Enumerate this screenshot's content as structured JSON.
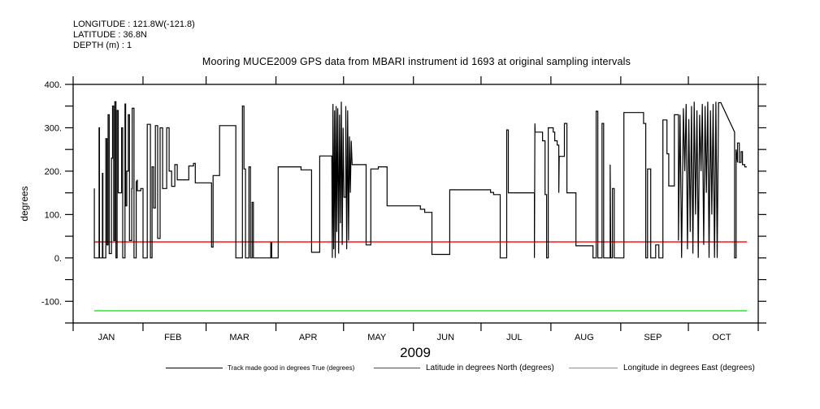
{
  "header": {
    "longitude": "LONGITUDE : 121.8W(-121.8)",
    "latitude": "LATITUDE : 36.8N",
    "depth": "DEPTH (m) : 1"
  },
  "chart_data": {
    "type": "line",
    "title": "Mooring MUCE2009 GPS data from MBARI instrument id 1693 at original sampling intervals",
    "xlabel": "2009",
    "ylabel": "degrees",
    "xlim_days": [
      0,
      304
    ],
    "ylim": [
      -150,
      400
    ],
    "y_ticks": [
      -100,
      0,
      100,
      200,
      300,
      400
    ],
    "y_tick_labels": [
      "-100.",
      "0.",
      "100.",
      "200.",
      "300.",
      "400."
    ],
    "y_minor_step": 50,
    "x_month_boundaries": [
      0,
      31,
      59,
      90,
      120,
      151,
      181,
      212,
      243,
      273,
      304
    ],
    "x_tick_labels": [
      "JAN",
      "FEB",
      "MAR",
      "APR",
      "MAY",
      "JUN",
      "JUL",
      "AUG",
      "SEP",
      "OCT"
    ],
    "grid": false,
    "legend_position": "bottom",
    "series": [
      {
        "name": "Track made good in degrees True (degrees)",
        "color": "#000000",
        "points": [
          [
            9.4,
            160
          ],
          [
            9.4,
            0
          ],
          [
            11.5,
            0
          ],
          [
            11.5,
            300
          ],
          [
            11.7,
            300
          ],
          [
            11.7,
            0
          ],
          [
            13,
            0
          ],
          [
            13,
            195
          ],
          [
            13.2,
            195
          ],
          [
            13.2,
            0
          ],
          [
            14.5,
            0
          ],
          [
            14.5,
            275
          ],
          [
            15,
            275
          ],
          [
            15,
            30
          ],
          [
            15.5,
            30
          ],
          [
            15.5,
            330
          ],
          [
            16,
            330
          ],
          [
            16,
            10
          ],
          [
            17,
            10
          ],
          [
            17,
            230
          ],
          [
            17.5,
            230
          ],
          [
            17.5,
            350
          ],
          [
            18,
            350
          ],
          [
            18,
            40
          ],
          [
            18.5,
            40
          ],
          [
            18.5,
            360
          ],
          [
            19,
            360
          ],
          [
            19,
            0
          ],
          [
            19.5,
            0
          ],
          [
            19.5,
            340
          ],
          [
            20,
            340
          ],
          [
            20,
            150
          ],
          [
            21.5,
            150
          ],
          [
            21.5,
            300
          ],
          [
            22,
            300
          ],
          [
            22,
            0
          ],
          [
            23,
            0
          ],
          [
            23,
            355
          ],
          [
            23.3,
            355
          ],
          [
            23.3,
            120
          ],
          [
            23.8,
            120
          ],
          [
            23.8,
            200
          ],
          [
            24.5,
            200
          ],
          [
            24.5,
            330
          ],
          [
            25,
            330
          ],
          [
            25,
            40
          ],
          [
            26,
            40
          ],
          [
            26,
            160
          ],
          [
            26.2,
            160
          ],
          [
            26.2,
            345
          ],
          [
            27,
            345
          ],
          [
            27,
            0
          ],
          [
            28,
            0
          ],
          [
            28,
            175
          ],
          [
            28.5,
            180
          ],
          [
            28.5,
            155
          ],
          [
            30,
            155
          ],
          [
            30,
            160
          ],
          [
            31,
            160
          ],
          [
            31,
            0
          ],
          [
            32.9,
            0
          ],
          [
            32.9,
            308
          ],
          [
            34.3,
            308
          ],
          [
            34.3,
            0
          ],
          [
            35,
            0
          ],
          [
            35,
            210
          ],
          [
            35.7,
            210
          ],
          [
            35.7,
            115
          ],
          [
            36.5,
            115
          ],
          [
            36.5,
            305
          ],
          [
            37.5,
            305
          ],
          [
            37.5,
            45
          ],
          [
            38.6,
            45
          ],
          [
            38.6,
            300
          ],
          [
            39.7,
            300
          ],
          [
            39.7,
            160
          ],
          [
            41.5,
            160
          ],
          [
            41.5,
            300
          ],
          [
            42.6,
            300
          ],
          [
            42.6,
            200
          ],
          [
            43.7,
            200
          ],
          [
            43.7,
            165
          ],
          [
            45.1,
            165
          ],
          [
            45.1,
            215
          ],
          [
            46.2,
            215
          ],
          [
            46.2,
            180
          ],
          [
            51.3,
            180
          ],
          [
            51.3,
            212
          ],
          [
            53.4,
            212
          ],
          [
            53.4,
            218
          ],
          [
            54.2,
            218
          ],
          [
            54.2,
            173
          ],
          [
            61.4,
            173
          ],
          [
            61.4,
            25
          ],
          [
            62.1,
            25
          ],
          [
            62.1,
            190
          ],
          [
            65,
            190
          ],
          [
            65,
            305
          ],
          [
            72.2,
            305
          ],
          [
            72.2,
            0
          ],
          [
            75.1,
            0
          ],
          [
            75.1,
            350
          ],
          [
            75.8,
            350
          ],
          [
            75.8,
            205
          ],
          [
            76.5,
            205
          ],
          [
            76.5,
            0
          ],
          [
            78,
            0
          ],
          [
            78,
            210
          ],
          [
            78.7,
            210
          ],
          [
            78.7,
            0
          ],
          [
            79.4,
            0
          ],
          [
            79.4,
            128
          ],
          [
            80,
            128
          ],
          [
            80,
            0
          ],
          [
            87.7,
            0
          ],
          [
            87.7,
            35
          ],
          [
            88.1,
            35
          ],
          [
            88.1,
            0
          ],
          [
            91,
            0
          ],
          [
            91,
            210
          ],
          [
            101.1,
            210
          ],
          [
            101.1,
            203
          ],
          [
            105.8,
            203
          ],
          [
            105.8,
            13
          ],
          [
            109.4,
            13
          ],
          [
            109.4,
            235
          ],
          [
            114.8,
            235
          ],
          [
            115,
            0
          ],
          [
            115.3,
            355
          ],
          [
            115.6,
            20
          ],
          [
            116,
            340
          ],
          [
            116.3,
            0
          ],
          [
            116.7,
            350
          ],
          [
            117,
            60
          ],
          [
            117.4,
            345
          ],
          [
            117.8,
            10
          ],
          [
            118.2,
            330
          ],
          [
            118.6,
            80
          ],
          [
            119,
            360
          ],
          [
            119.4,
            30
          ],
          [
            119.8,
            300
          ],
          [
            120.2,
            140
          ],
          [
            121,
            140
          ],
          [
            121,
            350
          ],
          [
            121.4,
            20
          ],
          [
            121.8,
            340
          ],
          [
            122.2,
            40
          ],
          [
            122.6,
            280
          ],
          [
            123,
            150
          ],
          [
            123.4,
            270
          ],
          [
            123.8,
            215
          ],
          [
            130,
            215
          ],
          [
            130,
            30
          ],
          [
            132.1,
            30
          ],
          [
            132.1,
            205
          ],
          [
            135.4,
            205
          ],
          [
            135.4,
            210
          ],
          [
            139.3,
            210
          ],
          [
            139.3,
            120
          ],
          [
            154.1,
            120
          ],
          [
            154.1,
            112
          ],
          [
            156,
            112
          ],
          [
            156,
            105
          ],
          [
            159.2,
            105
          ],
          [
            159.2,
            8
          ],
          [
            167.1,
            8
          ],
          [
            167.1,
            157
          ],
          [
            185.2,
            157
          ],
          [
            185.2,
            151
          ],
          [
            186.6,
            151
          ],
          [
            186.6,
            146
          ],
          [
            189.5,
            146
          ],
          [
            189.5,
            0
          ],
          [
            192.4,
            0
          ],
          [
            192.4,
            295
          ],
          [
            193.1,
            295
          ],
          [
            193.1,
            150
          ],
          [
            204.7,
            150
          ],
          [
            204.7,
            0
          ],
          [
            204.9,
            310
          ],
          [
            205,
            290
          ],
          [
            208.3,
            290
          ],
          [
            208.3,
            270
          ],
          [
            209.4,
            270
          ],
          [
            209.4,
            146
          ],
          [
            210.1,
            146
          ],
          [
            210.1,
            0
          ],
          [
            210.8,
            0
          ],
          [
            210.8,
            300
          ],
          [
            213,
            300
          ],
          [
            213,
            290
          ],
          [
            213.7,
            290
          ],
          [
            213.7,
            270
          ],
          [
            214.8,
            270
          ],
          [
            214.8,
            260
          ],
          [
            215.5,
            260
          ],
          [
            215.5,
            150
          ],
          [
            215.7,
            234
          ],
          [
            218,
            234
          ],
          [
            218,
            310
          ],
          [
            219.1,
            310
          ],
          [
            219.1,
            150
          ],
          [
            223.1,
            150
          ],
          [
            223.1,
            28
          ],
          [
            230.7,
            28
          ],
          [
            230.7,
            0
          ],
          [
            232.1,
            0
          ],
          [
            232.1,
            338
          ],
          [
            232.8,
            338
          ],
          [
            232.8,
            0
          ],
          [
            234.7,
            0
          ],
          [
            234.7,
            310
          ],
          [
            235.4,
            310
          ],
          [
            235.4,
            0
          ],
          [
            238.3,
            0
          ],
          [
            238.3,
            215
          ],
          [
            238.6,
            0
          ],
          [
            239.3,
            0
          ],
          [
            239.3,
            160
          ],
          [
            240.1,
            160
          ],
          [
            240.1,
            0
          ],
          [
            244.4,
            0
          ],
          [
            244.4,
            335
          ],
          [
            253.1,
            335
          ],
          [
            253.1,
            310
          ],
          [
            254.1,
            310
          ],
          [
            254.1,
            0
          ],
          [
            254.9,
            0
          ],
          [
            254.9,
            205
          ],
          [
            256.3,
            205
          ],
          [
            256.3,
            0
          ],
          [
            258.5,
            0
          ],
          [
            258.5,
            30
          ],
          [
            259.9,
            30
          ],
          [
            259.9,
            0
          ],
          [
            261.7,
            0
          ],
          [
            261.7,
            318
          ],
          [
            263.5,
            318
          ],
          [
            263.5,
            240
          ],
          [
            264.3,
            240
          ],
          [
            264.3,
            166
          ],
          [
            266.8,
            166
          ],
          [
            266.8,
            330
          ],
          [
            268.6,
            330
          ],
          [
            268.6,
            40
          ],
          [
            269.3,
            330
          ],
          [
            270,
            0
          ],
          [
            270.8,
            345
          ],
          [
            271.4,
            200
          ],
          [
            272,
            355
          ],
          [
            272.6,
            20
          ],
          [
            273.2,
            320
          ],
          [
            273.8,
            60
          ],
          [
            274.4,
            350
          ],
          [
            275,
            10
          ],
          [
            275.6,
            360
          ],
          [
            276.2,
            100
          ],
          [
            276.8,
            340
          ],
          [
            277.4,
            0
          ],
          [
            278,
            330
          ],
          [
            278.6,
            200
          ],
          [
            279.2,
            355
          ],
          [
            279.8,
            30
          ],
          [
            280.4,
            350
          ],
          [
            281,
            150
          ],
          [
            281.6,
            360
          ],
          [
            282.2,
            0
          ],
          [
            282.8,
            340
          ],
          [
            283.4,
            100
          ],
          [
            284,
            355
          ],
          [
            284.6,
            0
          ],
          [
            285.2,
            360
          ],
          [
            285.8,
            0
          ],
          [
            286.4,
            358
          ],
          [
            287.4,
            358
          ],
          [
            293.5,
            290
          ],
          [
            293.5,
            0
          ],
          [
            294.2,
            0
          ],
          [
            294.2,
            250
          ],
          [
            294.8,
            220
          ],
          [
            294.8,
            265
          ],
          [
            295.6,
            265
          ],
          [
            295.6,
            220
          ],
          [
            296.4,
            220
          ],
          [
            296.4,
            245
          ],
          [
            297,
            245
          ],
          [
            297,
            215
          ],
          [
            298,
            215
          ],
          [
            298,
            210
          ],
          [
            298.9,
            210
          ]
        ]
      },
      {
        "name": "Latitude in degrees North (degrees)",
        "color": "#ff0000",
        "points": [
          [
            9.4,
            36.8
          ],
          [
            299,
            36.8
          ]
        ]
      },
      {
        "name": "Longitude in degrees East (degrees)",
        "color": "#22dd22",
        "points": [
          [
            9.4,
            -121.8
          ],
          [
            299,
            -121.8
          ]
        ]
      }
    ]
  }
}
